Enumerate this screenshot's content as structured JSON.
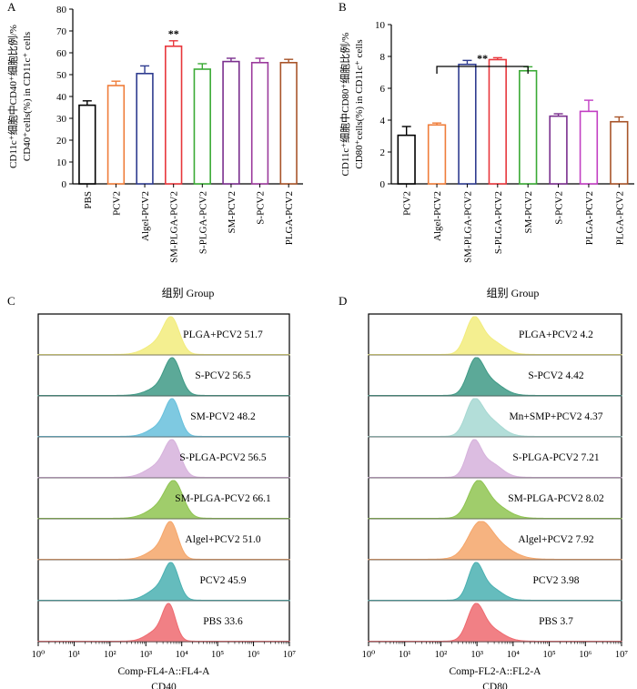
{
  "chart_data": [
    {
      "panel": "A",
      "type": "bar",
      "ylabel_lines": [
        "CD11c⁺细胞中CD40⁺细胞比例/%",
        "CD40⁺cells(%) in CD11c⁺ cells"
      ],
      "xlabel": "组别 Group",
      "ylim": [
        0,
        80
      ],
      "yticks": [
        0,
        10,
        20,
        30,
        40,
        50,
        60,
        70,
        80
      ],
      "categories": [
        "PBS",
        "PCV2",
        "Algel-PCV2",
        "SM-PLGA-PCV2",
        "S-PLGA-PCV2",
        "SM-PCV2",
        "S-PCV2",
        "PLGA-PCV2"
      ],
      "values": [
        36,
        45,
        50.5,
        63,
        52.5,
        56,
        55.5,
        55.5
      ],
      "errors": [
        2,
        2,
        3.5,
        2.5,
        2.5,
        1.5,
        2,
        1.5
      ],
      "colors": [
        "#000000",
        "#ef7d3a",
        "#2f3c8f",
        "#e8373c",
        "#3aaa35",
        "#7a2f8e",
        "#9b3a9c",
        "#a8552a"
      ],
      "annotation": {
        "text": "**",
        "category": "SM-PLGA-PCV2"
      }
    },
    {
      "panel": "B",
      "type": "bar",
      "ylabel_lines": [
        "CD11c⁺细胞中CD80⁺细胞比例/%",
        "CD80⁺cells(%) in CD11c⁺ cells"
      ],
      "xlabel": "组别 Group",
      "ylim": [
        0,
        10
      ],
      "yticks": [
        0,
        2,
        4,
        6,
        8,
        10
      ],
      "categories": [
        "PCV2",
        "Algel-PCV2",
        "SM-PLGA-PCV2",
        "S-PLGA-PCV2",
        "SM-PCV2",
        "S-PCV2",
        "PLGA-PCV2",
        "PLGA-PCV2"
      ],
      "values": [
        3.05,
        3.7,
        7.5,
        7.8,
        7.1,
        4.25,
        4.55,
        3.9
      ],
      "errors": [
        0.55,
        0.12,
        0.25,
        0.12,
        0.25,
        0.15,
        0.7,
        0.3
      ],
      "colors": [
        "#000000",
        "#ef7d3a",
        "#2f3c8f",
        "#e8373c",
        "#3aaa35",
        "#7a2f8e",
        "#c23fc3",
        "#a8552a"
      ],
      "bracket": {
        "text": "**",
        "from": 1,
        "to": 4
      }
    },
    {
      "panel": "C",
      "type": "area",
      "xlabel_lines": [
        "Comp-FL4-A::FL4-A",
        "CD40"
      ],
      "xticks": [
        "10⁰",
        "10¹",
        "10²",
        "10³",
        "10⁴",
        "10⁵",
        "10⁶",
        "10⁷"
      ],
      "xscale": "log",
      "xlim_exp": [
        0,
        7
      ],
      "traces": [
        {
          "label": "PLGA+PCV2 51.7",
          "color": "#f2ec7c",
          "peak": 3.72,
          "width": 0.22,
          "shoulder": 0.35,
          "shoulder_pos": 3.35
        },
        {
          "label": "S-PCV2 56.5",
          "color": "#3f9a86",
          "peak": 3.75,
          "width": 0.22,
          "shoulder": 0.25,
          "shoulder_pos": 3.4
        },
        {
          "label": "SM-PCV2 48.2",
          "color": "#67c0dc",
          "peak": 3.75,
          "width": 0.2,
          "shoulder": 0.3,
          "shoulder_pos": 3.4
        },
        {
          "label": "S-PLGA-PCV2 56.5",
          "color": "#d6b2dc",
          "peak": 3.75,
          "width": 0.22,
          "shoulder": 0.35,
          "shoulder_pos": 3.35
        },
        {
          "label": "SM-PLGA-PCV2 66.1",
          "color": "#8fc451",
          "peak": 3.8,
          "width": 0.24,
          "shoulder": 0.4,
          "shoulder_pos": 3.45
        },
        {
          "label": "Algel+PCV2 51.0",
          "color": "#f5a66a",
          "peak": 3.7,
          "width": 0.2,
          "shoulder": 0.3,
          "shoulder_pos": 3.35
        },
        {
          "label": "PCV2 45.9",
          "color": "#4ab0b1",
          "peak": 3.72,
          "width": 0.2,
          "shoulder": 0.35,
          "shoulder_pos": 3.35
        },
        {
          "label": "PBS 33.6",
          "color": "#ee6a70",
          "peak": 3.65,
          "width": 0.18,
          "shoulder": 0.3,
          "shoulder_pos": 3.3
        }
      ]
    },
    {
      "panel": "D",
      "type": "area",
      "xlabel_lines": [
        "Comp-FL2-A::FL2-A",
        "CD80"
      ],
      "xticks": [
        "10⁰",
        "10¹",
        "10²",
        "10³",
        "10⁴",
        "10⁵",
        "10⁶",
        "10⁷"
      ],
      "xscale": "log",
      "xlim_exp": [
        0,
        7
      ],
      "traces": [
        {
          "label": "PLGA+PCV2 4.2",
          "color": "#f2ec7c",
          "peak": 2.9,
          "width": 0.22,
          "shoulder": 0.45,
          "shoulder_pos": 3.35
        },
        {
          "label": "S-PCV2 4.42",
          "color": "#3f9a86",
          "peak": 2.95,
          "width": 0.22,
          "shoulder": 0.45,
          "shoulder_pos": 3.35
        },
        {
          "label": "Mn+SMP+PCV2 4.37",
          "color": "#a6d8d2",
          "peak": 2.9,
          "width": 0.22,
          "shoulder": 0.6,
          "shoulder_pos": 3.3
        },
        {
          "label": "S-PLGA-PCV2 7.21",
          "color": "#d6b2dc",
          "peak": 2.9,
          "width": 0.2,
          "shoulder": 0.45,
          "shoulder_pos": 3.35
        },
        {
          "label": "SM-PLGA-PCV2 8.02",
          "color": "#8fc451",
          "peak": 3.0,
          "width": 0.25,
          "shoulder": 0.5,
          "shoulder_pos": 3.4
        },
        {
          "label": "Algel+PCV2 7.92",
          "color": "#f5a66a",
          "peak": 3.05,
          "width": 0.3,
          "shoulder": 0.7,
          "shoulder_pos": 3.4
        },
        {
          "label": "PCV2 3.98",
          "color": "#4ab0b1",
          "peak": 2.95,
          "width": 0.2,
          "shoulder": 0.4,
          "shoulder_pos": 3.35
        },
        {
          "label": "PBS 3.7",
          "color": "#ee6a70",
          "peak": 2.95,
          "width": 0.22,
          "shoulder": 0.4,
          "shoulder_pos": 3.35
        }
      ]
    }
  ]
}
